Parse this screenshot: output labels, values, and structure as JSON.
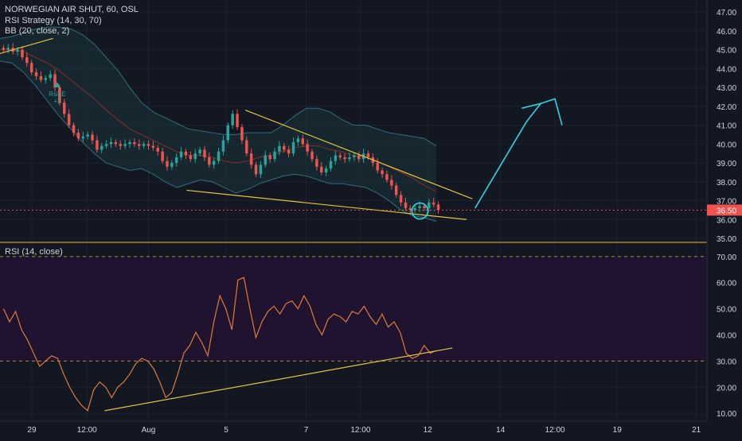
{
  "header": {
    "symbol_line": "NORWEGIAN AIR SHUT, 60, OSL",
    "indicator_1": "RSI Strategy (14, 30, 70)",
    "indicator_2": "BB (20, close, 2)",
    "rsi_pane_label": "RSI (14, close)",
    "strategy_marker": "RsiLE",
    "strategy_marker_qty": "+2"
  },
  "colors": {
    "background": "#131722",
    "grid": "#1e2230",
    "up_candle": "#26a69a",
    "down_candle": "#ef5350",
    "bb_band": "#2f6f7a",
    "bb_basis": "#8b2c2c",
    "trendline": "#e0c341",
    "rsi_line": "#e07b39",
    "rsi_band_fill": "#1f1330",
    "rsi_level": "#e0c341",
    "price_tag": "#ef5350",
    "drawing_cyan": "#2ad6e8",
    "text": "#d1d4dc"
  },
  "chart_data": [
    {
      "type": "candlestick",
      "title": "NORWEGIAN AIR SHUT, 60, OSL",
      "x_tick_labels": [
        "29",
        "12:00",
        "Aug",
        "5",
        "7",
        "12:00",
        "12",
        "14",
        "12:00",
        "19",
        "21"
      ],
      "y_ticks": [
        "47.00",
        "46.00",
        "45.00",
        "44.00",
        "43.00",
        "42.00",
        "41.00",
        "40.00",
        "39.00",
        "38.00",
        "37.00",
        "36.00",
        "35.00"
      ],
      "ylim": [
        35,
        47.3
      ],
      "last_price": "36.50",
      "close_series": [
        45.0,
        45.1,
        44.9,
        45.0,
        44.6,
        44.3,
        43.8,
        43.6,
        43.4,
        43.5,
        43.7,
        43.0,
        42.2,
        41.6,
        41.0,
        40.6,
        40.3,
        40.4,
        40.5,
        40.2,
        39.7,
        39.9,
        40.0,
        40.1,
        40.0,
        39.9,
        40.0,
        40.1,
        40.0,
        39.9,
        40.0,
        39.9,
        39.8,
        39.6,
        39.1,
        38.8,
        39.0,
        39.3,
        39.6,
        39.4,
        39.2,
        39.5,
        39.7,
        39.3,
        38.9,
        39.1,
        39.6,
        40.2,
        41.0,
        41.6,
        40.9,
        40.2,
        39.5,
        38.9,
        38.4,
        38.9,
        39.4,
        39.2,
        39.6,
        39.9,
        39.7,
        39.5,
        40.1,
        40.3,
        40.0,
        39.6,
        39.2,
        38.8,
        38.5,
        38.7,
        39.1,
        39.4,
        39.3,
        39.2,
        39.3,
        39.4,
        39.2,
        39.5,
        39.3,
        39.0,
        38.6,
        38.4,
        38.1,
        37.8,
        37.3,
        36.9,
        36.6,
        36.5,
        36.6,
        36.7,
        36.6,
        36.9,
        36.8,
        36.5
      ],
      "bollinger": {
        "upper": [
          45.6,
          45.7,
          45.9,
          46.1,
          46.2,
          46.2,
          46.1,
          45.8,
          45.3,
          44.6,
          43.9,
          43.0,
          42.2,
          41.7,
          41.4,
          41.1,
          40.8,
          40.7,
          40.6,
          40.5,
          40.5,
          40.6,
          40.6,
          40.6,
          41.0,
          41.5,
          41.9,
          41.9,
          41.7,
          41.3,
          41.0,
          41.0,
          40.8,
          40.6,
          40.5,
          40.4,
          40.3,
          39.9
        ],
        "lower": [
          44.4,
          44.3,
          43.8,
          43.1,
          42.3,
          41.5,
          40.8,
          40.1,
          39.5,
          39.0,
          38.8,
          38.6,
          38.7,
          38.4,
          38.0,
          37.7,
          37.9,
          38.1,
          38.0,
          37.7,
          37.4,
          37.6,
          37.9,
          38.1,
          38.3,
          38.4,
          38.3,
          38.1,
          37.9,
          37.9,
          37.8,
          37.7,
          37.4,
          37.0,
          36.5,
          36.2,
          36.1,
          35.9
        ],
        "basis": [
          45.0,
          45.0,
          44.9,
          44.6,
          44.3,
          43.9,
          43.4,
          42.9,
          42.4,
          41.8,
          41.3,
          40.8,
          40.5,
          40.2,
          39.9,
          39.6,
          39.4,
          39.4,
          39.3,
          39.1,
          39.0,
          39.1,
          39.3,
          39.4,
          39.6,
          39.8,
          39.9,
          39.9,
          39.7,
          39.6,
          39.4,
          39.3,
          39.1,
          38.8,
          38.5,
          38.2,
          37.8,
          37.5
        ]
      },
      "annotations": [
        {
          "type": "trendline",
          "label": "upper wedge",
          "from": [
            0.347,
            41.8
          ],
          "to": [
            0.668,
            37.1
          ]
        },
        {
          "type": "trendline",
          "label": "lower wedge",
          "from": [
            0.264,
            37.55
          ],
          "to": [
            0.66,
            36.0
          ]
        },
        {
          "type": "trendline",
          "label": "early",
          "from": [
            0.0,
            44.8
          ],
          "to": [
            0.075,
            45.6
          ]
        },
        {
          "type": "freehand-arrow",
          "label": "projection",
          "points": [
            [
              0.672,
              36.6
            ],
            [
              0.71,
              39.0
            ],
            [
              0.745,
              41.2
            ],
            [
              0.765,
              42.15
            ],
            [
              0.785,
              42.4
            ],
            [
              0.795,
              41.0
            ]
          ]
        },
        {
          "type": "circle",
          "label": "highlight",
          "center": [
            0.594,
            36.45
          ]
        }
      ]
    },
    {
      "type": "line",
      "title": "RSI (14, close)",
      "y_ticks": [
        "70.00",
        "60.00",
        "50.00",
        "40.00",
        "30.00",
        "20.00",
        "10.00"
      ],
      "ylim": [
        7,
        73
      ],
      "levels": [
        70,
        30
      ],
      "rsi": [
        50,
        45,
        49,
        42,
        38,
        33,
        28,
        30,
        32,
        31,
        25,
        20,
        16,
        13,
        11,
        19,
        22,
        20,
        16,
        20,
        22,
        25,
        29,
        31,
        30,
        27,
        22,
        16,
        18,
        25,
        33,
        36,
        41,
        37,
        32,
        45,
        55,
        50,
        42,
        61,
        62,
        50,
        39,
        45,
        49,
        51,
        48,
        52,
        53,
        50,
        55,
        51,
        44,
        40,
        46,
        48,
        47,
        45,
        49,
        48,
        51,
        47,
        44,
        48,
        43,
        45,
        41,
        33,
        31,
        32,
        36,
        33,
        34
      ],
      "annotations": [
        {
          "type": "trendline",
          "label": "rsi support",
          "from": [
            0.148,
            11.0
          ],
          "to": [
            0.64,
            35.0
          ]
        }
      ]
    }
  ]
}
